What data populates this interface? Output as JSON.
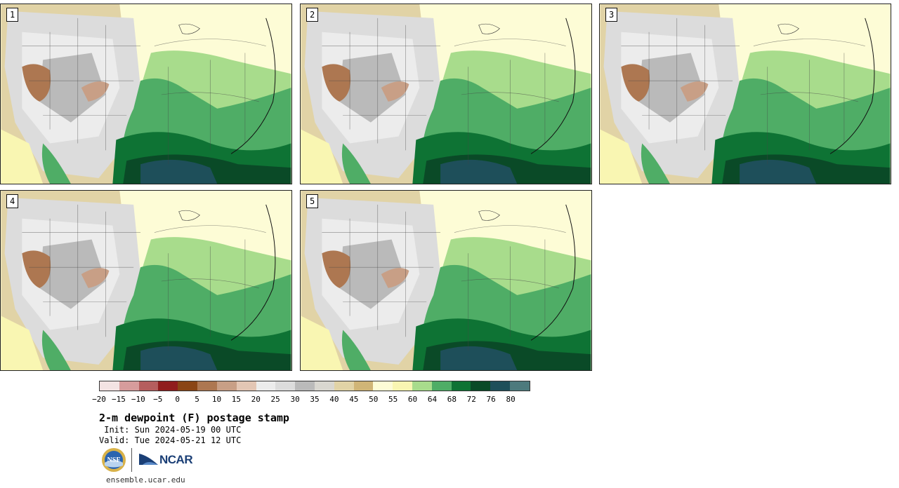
{
  "panels": [
    {
      "label": "1"
    },
    {
      "label": "2"
    },
    {
      "label": "3"
    },
    {
      "label": "4"
    },
    {
      "label": "5"
    }
  ],
  "colorbar": {
    "colors": [
      "#f3e3e3",
      "#d69c9c",
      "#b55e5e",
      "#901d1d",
      "#8a4515",
      "#ad7751",
      "#c89f86",
      "#e3c6b4",
      "#ececec",
      "#dcdcdc",
      "#bababa",
      "#d9d7d0",
      "#e1d3a6",
      "#d0b577",
      "#fdfcd6",
      "#f9f6b2",
      "#a8dc8c",
      "#4fad66",
      "#0e7334",
      "#0a4a27",
      "#1e4f5a",
      "#4d7a7d"
    ],
    "tick_labels": [
      "−20",
      "−15",
      "−10",
      "−5",
      "0",
      "5",
      "10",
      "15",
      "20",
      "25",
      "30",
      "35",
      "40",
      "45",
      "50",
      "55",
      "60",
      "64",
      "68",
      "72",
      "76",
      "80"
    ]
  },
  "title": "2-m dewpoint (F) postage stamp",
  "init_line": " Init: Sun 2024-05-19 00 UTC",
  "valid_line": "Valid: Tue 2024-05-21 12 UTC",
  "logos": {
    "nsf": "NSF",
    "ncar": "NCAR"
  },
  "website": "ensemble.ucar.edu"
}
